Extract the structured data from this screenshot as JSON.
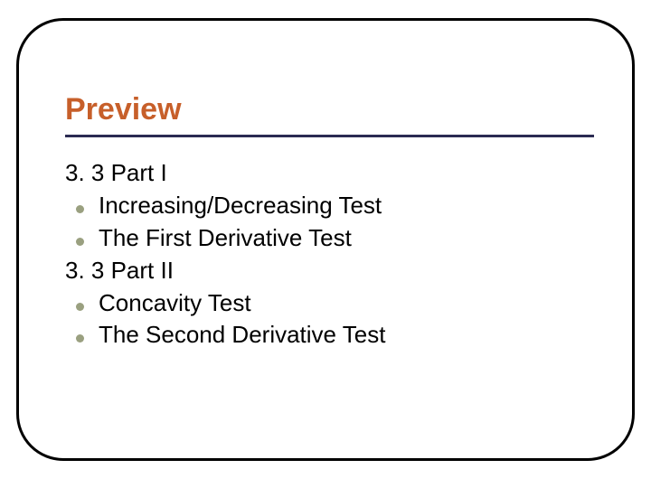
{
  "slide": {
    "title": "Preview",
    "title_color": "#c75f2a",
    "title_fontsize": 34,
    "rule_color": "#2b2b52",
    "frame_border_color": "#000000",
    "frame_border_radius": 52,
    "background_color": "#ffffff",
    "bullet_color": "#9aa080",
    "body_fontsize": 26,
    "body_color": "#000000",
    "lines": [
      {
        "kind": "heading",
        "text": "3. 3 Part I"
      },
      {
        "kind": "bullet",
        "text": "Increasing/Decreasing Test"
      },
      {
        "kind": "bullet",
        "text": "The First Derivative Test"
      },
      {
        "kind": "heading",
        "text": "3. 3 Part II"
      },
      {
        "kind": "bullet",
        "text": "Concavity Test"
      },
      {
        "kind": "bullet",
        "text": "The Second Derivative Test"
      }
    ]
  }
}
